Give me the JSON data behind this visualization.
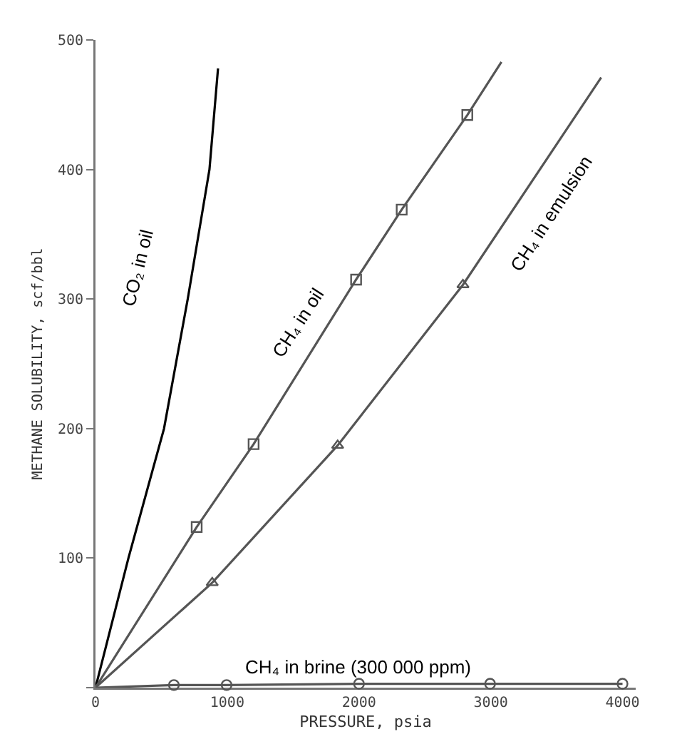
{
  "chart_data": {
    "type": "line",
    "xlabel": "PRESSURE, psia",
    "ylabel": "METHANE SOLUBILITY, scf/bbl",
    "xlim": [
      0,
      4100
    ],
    "ylim": [
      0,
      500
    ],
    "xticks": [
      0,
      1000,
      2000,
      3000,
      4000
    ],
    "yticks": [
      {
        "value": 0,
        "label": null
      },
      100,
      200,
      300,
      400,
      500
    ],
    "grid": false,
    "series": [
      {
        "name": "CO₂ in oil",
        "color": "#000000",
        "x": [
          0,
          250,
          520,
          700,
          865,
          930
        ],
        "values": [
          0,
          100,
          200,
          300,
          400,
          478
        ]
      },
      {
        "name": "CH₄ in oil",
        "color": "#555555",
        "x": [
          0,
          768,
          1200,
          1978,
          2324,
          2822,
          3081
        ],
        "values": [
          0,
          124,
          188,
          315,
          369,
          442,
          483
        ]
      },
      {
        "type": "scatter",
        "marker": "square",
        "color": "#555555",
        "x": [
          768,
          1200,
          1978,
          2324,
          2822
        ],
        "values": [
          124,
          188,
          315,
          369,
          442
        ]
      },
      {
        "name": "CH₄ in emulsion",
        "color": "#555555",
        "x": [
          0,
          886,
          1838,
          2789,
          3838
        ],
        "values": [
          0,
          81,
          187,
          311,
          471
        ]
      },
      {
        "type": "scatter",
        "marker": "triangle",
        "color": "#555555",
        "x": [
          886,
          1838,
          2789
        ],
        "values": [
          81,
          187,
          311
        ]
      },
      {
        "name": "CH₄ in brine (300 000 ppm)",
        "color": "#555555",
        "x": [
          0,
          595,
          995,
          2000,
          2995,
          4000
        ],
        "values": [
          0,
          2,
          2,
          3,
          3,
          3
        ]
      },
      {
        "type": "scatter",
        "marker": "circle",
        "color": "#555555",
        "x": [
          595,
          995,
          2000,
          2995,
          4000
        ],
        "values": [
          2,
          2,
          3,
          3,
          3
        ]
      }
    ]
  }
}
